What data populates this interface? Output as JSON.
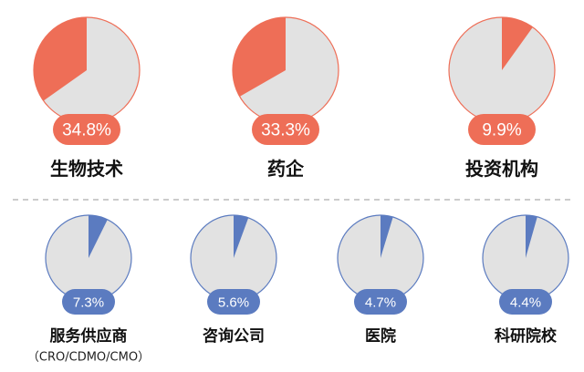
{
  "chart_data": {
    "type": "pie",
    "colors": {
      "top_accent": "#EE6E57",
      "bottom_accent": "#5B7BC0",
      "pie_base": "#E2E2E2",
      "divider": "#BBBBBB"
    },
    "groups": [
      {
        "row": "top",
        "items": [
          {
            "category": "生物技术",
            "value": 34.8,
            "label": "34.8%",
            "sublabel": ""
          },
          {
            "category": "药企",
            "value": 33.3,
            "label": "33.3%",
            "sublabel": ""
          },
          {
            "category": "投资机构",
            "value": 9.9,
            "label": "9.9%",
            "sublabel": ""
          }
        ]
      },
      {
        "row": "bottom",
        "items": [
          {
            "category": "服务供应商",
            "value": 7.3,
            "label": "7.3%",
            "sublabel": "（CRO/CDMO/CMO）"
          },
          {
            "category": "咨询公司",
            "value": 5.6,
            "label": "5.6%",
            "sublabel": ""
          },
          {
            "category": "医院",
            "value": 4.7,
            "label": "4.7%",
            "sublabel": ""
          },
          {
            "category": "科研院校",
            "value": 4.4,
            "label": "4.4%",
            "sublabel": ""
          }
        ]
      }
    ]
  }
}
